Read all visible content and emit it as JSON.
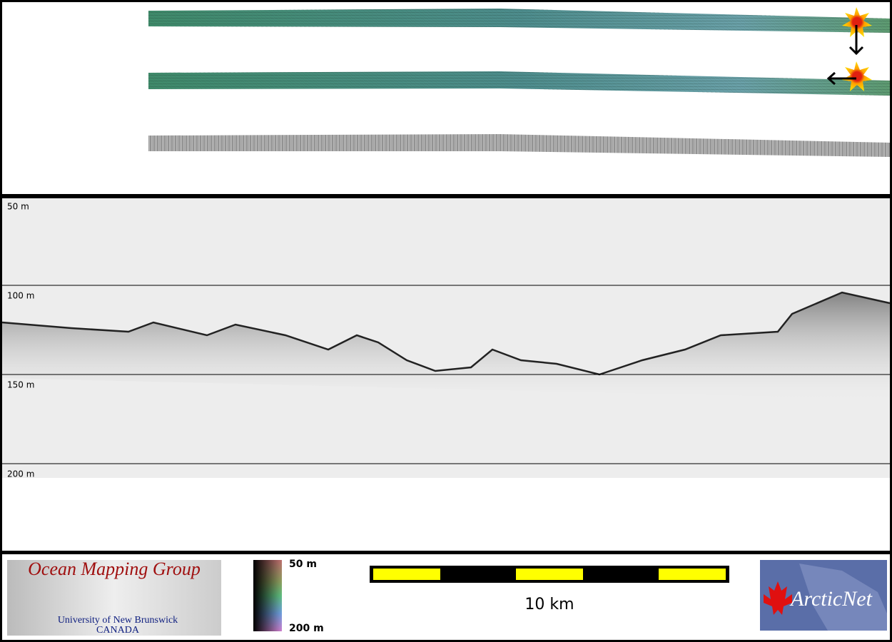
{
  "profile": {
    "depth_labels": [
      "50 m",
      "100 m",
      "150 m",
      "200 m"
    ]
  },
  "legend": {
    "colorbar_top": "50 m",
    "colorbar_bottom": "200 m",
    "scale_bar": "10 km"
  },
  "logos": {
    "omg_title": "Ocean Mapping Group",
    "omg_university": "University of New Brunswick",
    "omg_country": "CANADA",
    "arcticnet": "ArcticNet"
  }
}
